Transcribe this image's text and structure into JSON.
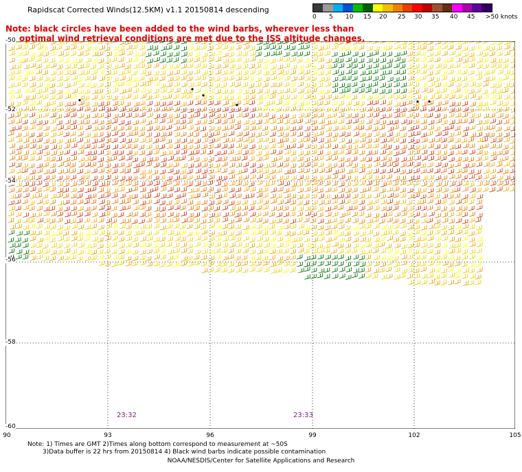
{
  "title": "Rapidscat Corrected Winds(12.5KM) v1.1 20150814 descending",
  "note_lines": [
    "Note: black circles have been added to the wind barbs, wherever less than",
    "optimal wind retrieval conditions are met due to the ISS altitude changes."
  ],
  "legend": {
    "labels": [
      "0",
      "5",
      "10",
      "15",
      "20",
      "25",
      "30",
      "35",
      "40",
      "45",
      ">50 knots"
    ],
    "colors": [
      "#3a3a3a",
      "#9a9a9a",
      "#00b0f0",
      "#0050d8",
      "#00c000",
      "#006000",
      "#ffff00",
      "#f0c000",
      "#f08000",
      "#e84000",
      "#ff0000",
      "#c00000",
      "#a05030",
      "#603010",
      "#ff00ff",
      "#b000b0",
      "#6000a0",
      "#300060"
    ]
  },
  "axes": {
    "lat_labels": [
      "-50",
      "-52",
      "-54",
      "-56",
      "-58",
      "-60"
    ],
    "lon_labels": [
      "90",
      "93",
      "96",
      "99",
      "102",
      "105"
    ]
  },
  "times": [
    "23:32",
    "23:33"
  ],
  "bottom_notes": [
    "Note: 1) Times are GMT 2)Times along bottom correspond to measurement at ~50S",
    "3)Data buffer is 22 hrs from 20150814 4) Black wind barbs indicate possible contamination"
  ],
  "credit": "NOAA/NESDIS/Center for Satellite Applications and Research"
}
